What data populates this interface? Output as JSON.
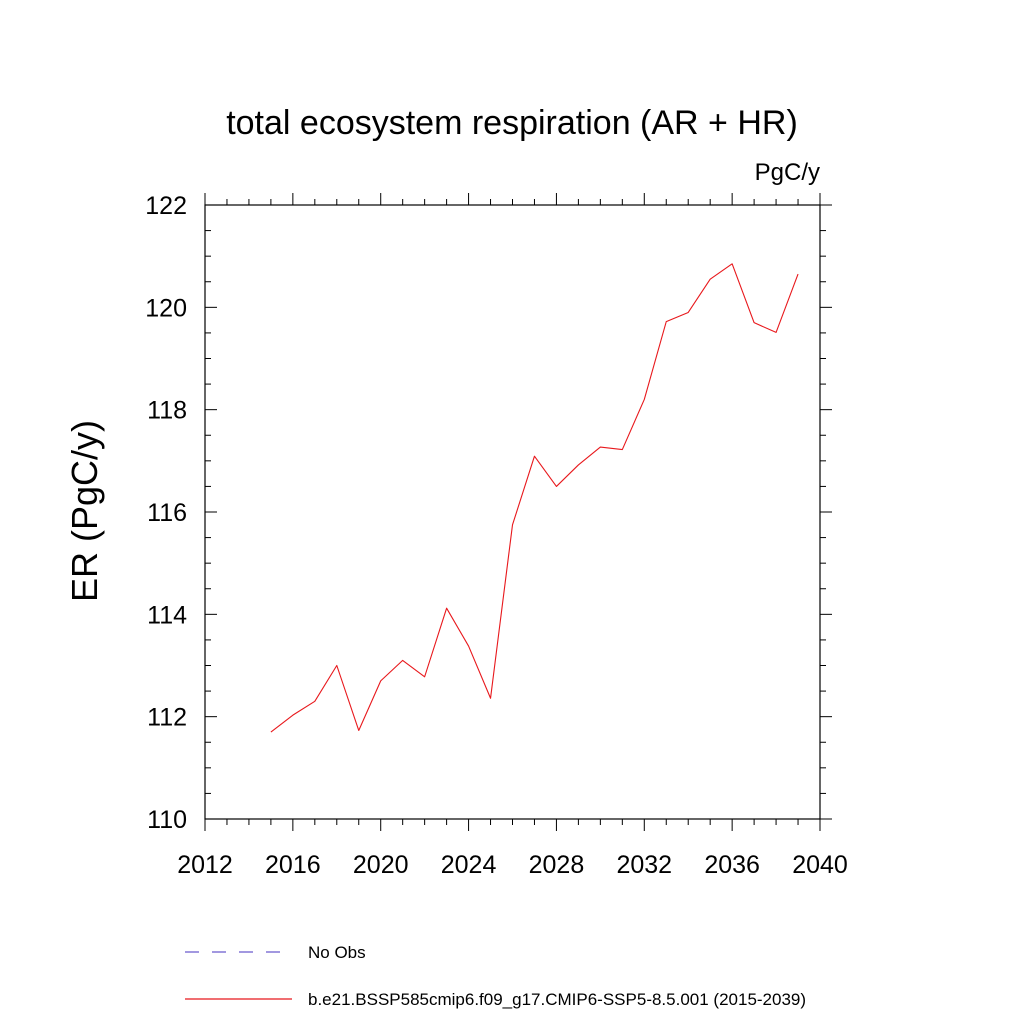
{
  "chart_data": {
    "type": "line",
    "title": "total ecosystem respiration (AR + HR)",
    "units": "PgC/y",
    "xlabel": "",
    "ylabel": "ER  (PgC/y)",
    "xlim": [
      2012,
      2040
    ],
    "ylim": [
      110,
      122
    ],
    "xticks": [
      2012,
      2016,
      2020,
      2024,
      2028,
      2032,
      2036,
      2040
    ],
    "yticks": [
      110,
      112,
      114,
      116,
      118,
      120,
      122
    ],
    "grid": false,
    "series": [
      {
        "name": "b.e21.BSSP585cmip6.f09_g17.CMIP6-SSP5-8.5.001 (2015-2039)",
        "color": "#e8181c",
        "style": "solid",
        "x": [
          2015,
          2016,
          2017,
          2018,
          2019,
          2020,
          2021,
          2022,
          2023,
          2024,
          2025,
          2026,
          2027,
          2028,
          2029,
          2030,
          2031,
          2032,
          2033,
          2034,
          2035,
          2036,
          2037,
          2038,
          2039
        ],
        "y": [
          111.7,
          112.03,
          112.3,
          113.0,
          111.73,
          112.7,
          113.1,
          112.78,
          114.12,
          113.38,
          112.36,
          115.75,
          117.09,
          116.5,
          116.92,
          117.27,
          117.22,
          118.2,
          119.72,
          119.9,
          120.55,
          120.85,
          119.7,
          119.51,
          120.65
        ]
      }
    ],
    "legend": [
      {
        "label": "No Obs",
        "color": "#6a5acd",
        "style": "dashed"
      },
      {
        "label": "b.e21.BSSP585cmip6.f09_g17.CMIP6-SSP5-8.5.001 (2015-2039)",
        "color": "#e8181c",
        "style": "solid"
      }
    ],
    "legend_position": "bottom"
  }
}
